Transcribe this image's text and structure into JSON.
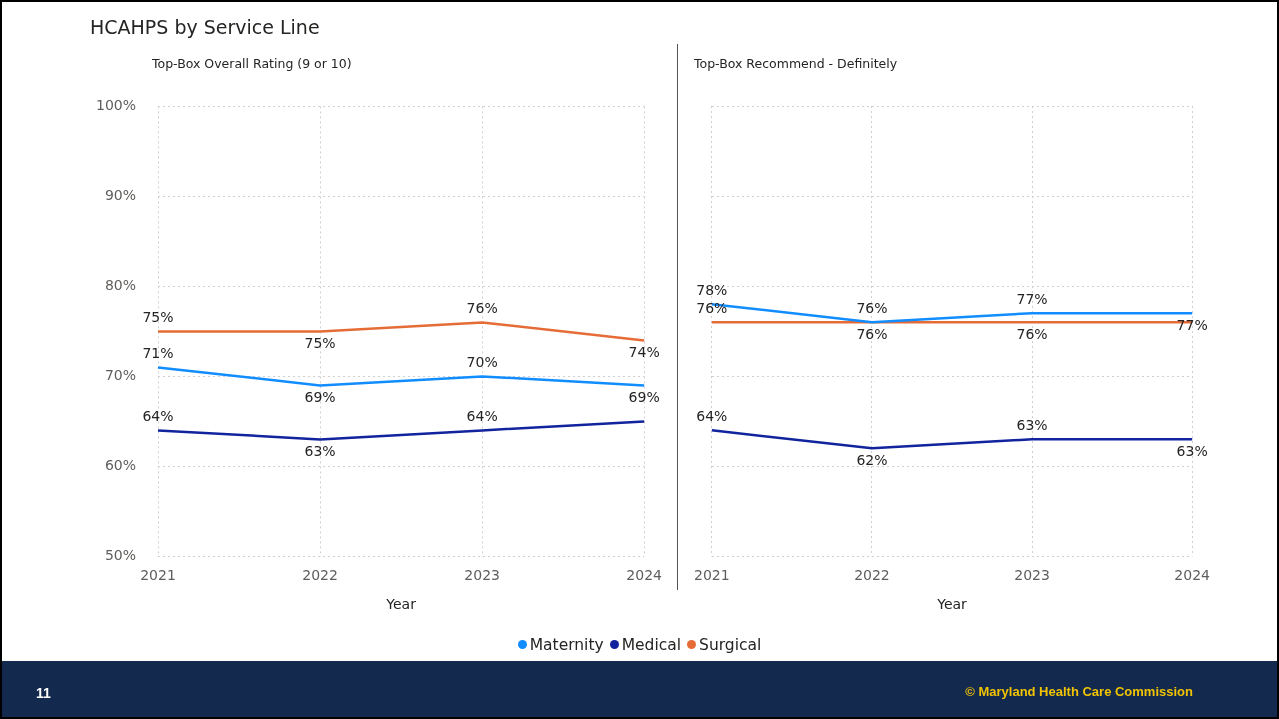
{
  "chart_data": [
    {
      "type": "line",
      "title": "HCAHPS by Service Line",
      "subtitle": "Top-Box Overall Rating (9 or 10)",
      "xlabel": "Year",
      "categories": [
        "2021",
        "2022",
        "2023",
        "2024"
      ],
      "series": [
        {
          "name": "Maternity",
          "color": "#118dff",
          "values": [
            71,
            69,
            70,
            69
          ],
          "value_labels": [
            "71%",
            "69%",
            "70%",
            "69%"
          ]
        },
        {
          "name": "Medical",
          "color": "#12239e",
          "values": [
            64,
            63,
            64,
            65
          ],
          "value_labels": [
            "64%",
            "63%",
            "64%",
            null
          ]
        },
        {
          "name": "Surgical",
          "color": "#e66c37",
          "values": [
            75,
            75,
            76,
            74
          ],
          "value_labels": [
            "75%",
            "75%",
            "76%",
            "74%"
          ]
        }
      ],
      "ylim": [
        50,
        100
      ],
      "yticks": [
        {
          "value": 50,
          "label": "50%"
        },
        {
          "value": 60,
          "label": "60%"
        },
        {
          "value": 70,
          "label": "70%"
        },
        {
          "value": 80,
          "label": "80%"
        },
        {
          "value": 90,
          "label": "90%"
        },
        {
          "value": 100,
          "label": "100%"
        }
      ],
      "grid": true,
      "legend": "bottom",
      "marker": "none",
      "annotations": [
        "11",
        "© Maryland Health Care Commission"
      ]
    },
    {
      "type": "line",
      "subtitle": "Top-Box Recommend - Definitely",
      "xlabel": "Year",
      "categories": [
        "2021",
        "2022",
        "2023",
        "2024"
      ],
      "series": [
        {
          "color": "#118dff",
          "values": [
            78,
            76,
            77,
            77
          ],
          "value_labels": [
            "78%",
            "76%",
            "77%",
            "77%"
          ]
        },
        {
          "color": "#12239e",
          "values": [
            64,
            62,
            63,
            63
          ],
          "value_labels": [
            "64%",
            "62%",
            "63%",
            "63%"
          ]
        },
        {
          "color": "#e66c37",
          "values": [
            76,
            76,
            76,
            76
          ],
          "value_labels": [
            "76%",
            "76%",
            "76%",
            null
          ]
        }
      ],
      "ylim": [
        50,
        100
      ],
      "yticks": [
        50,
        60,
        70,
        80,
        90,
        100
      ],
      "grid": true,
      "tick_labels": "x",
      "marker": "none"
    }
  ]
}
